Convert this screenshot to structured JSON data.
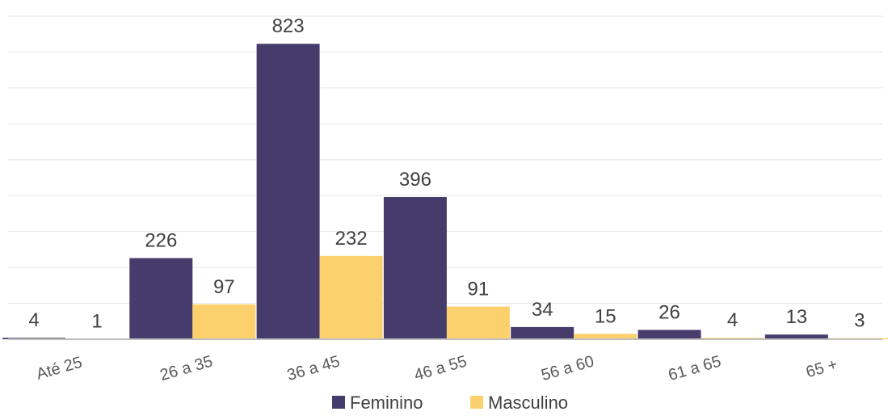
{
  "chart_data": {
    "type": "bar",
    "title": "",
    "xlabel": "",
    "ylabel": "",
    "categories": [
      "Até 25",
      "26 a 35",
      "36 a 45",
      "46 a 55",
      "56 a 60",
      "61 a 65",
      "65 +"
    ],
    "series": [
      {
        "name": "Feminino",
        "color": "#463c6b",
        "values": [
          4,
          226,
          823,
          396,
          34,
          26,
          13
        ]
      },
      {
        "name": "Masculino",
        "color": "#fdd06e",
        "values": [
          1,
          97,
          232,
          91,
          15,
          4,
          3
        ]
      }
    ],
    "ylim": [
      0,
      900
    ],
    "grid": true,
    "data_labels": true,
    "legend_position": "bottom"
  }
}
